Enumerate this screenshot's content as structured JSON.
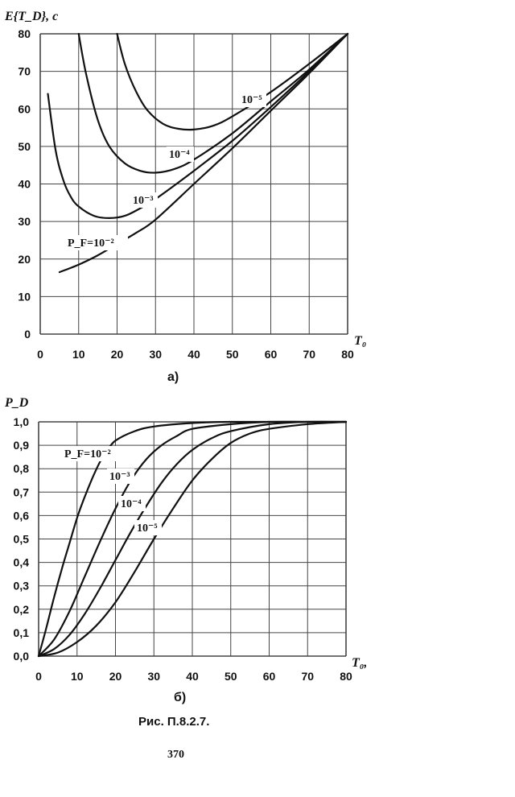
{
  "chart_data": [
    {
      "type": "line",
      "ylabel": "E{T_D}, c",
      "xlabel": "T₀",
      "xlim": [
        0,
        80
      ],
      "ylim": [
        0,
        80
      ],
      "xticks": [
        "0",
        "10",
        "20",
        "30",
        "40",
        "50",
        "60",
        "70",
        "80"
      ],
      "yticks": [
        "0",
        "10",
        "20",
        "30",
        "40",
        "50",
        "60",
        "70",
        "80"
      ],
      "grid": true,
      "series": [
        {
          "label": "P_F=10⁻²",
          "x": [
            5,
            10,
            15,
            20,
            25,
            30,
            40,
            50,
            60,
            70,
            80
          ],
          "y": [
            16.5,
            18.5,
            21,
            24,
            27,
            30.5,
            40,
            49.5,
            59.5,
            69.5,
            80
          ]
        },
        {
          "label": "10⁻³",
          "x": [
            2,
            4,
            6,
            8,
            10,
            14,
            18,
            22,
            26,
            30,
            40,
            50,
            60,
            70,
            80
          ],
          "y": [
            64,
            49,
            41,
            36.5,
            34,
            31.5,
            30.9,
            31.5,
            33.5,
            36,
            43.5,
            51.5,
            60.5,
            70,
            80
          ]
        },
        {
          "label": "10⁻⁴",
          "x": [
            10,
            12,
            15,
            18,
            22,
            26,
            30,
            35,
            40,
            50,
            60,
            70,
            80
          ],
          "y": [
            80,
            69,
            57,
            50,
            45.5,
            43.5,
            43,
            44,
            46.5,
            53.5,
            62,
            70.5,
            80
          ]
        },
        {
          "label": "10⁻⁵",
          "x": [
            20,
            22,
            25,
            28,
            32,
            36,
            40,
            45,
            50,
            60,
            70,
            80
          ],
          "y": [
            80,
            72,
            64.5,
            59.5,
            56,
            54.7,
            54.5,
            55.5,
            58,
            64.5,
            72,
            80
          ]
        }
      ],
      "caption": "а)"
    },
    {
      "type": "line",
      "ylabel": "P_D",
      "xlabel": "T₀,",
      "xlim": [
        0,
        80
      ],
      "ylim": [
        0,
        1.0
      ],
      "xticks": [
        "0",
        "10",
        "20",
        "30",
        "40",
        "50",
        "60",
        "70",
        "80"
      ],
      "yticks": [
        "0,0",
        "0,1",
        "0,2",
        "0,3",
        "0,4",
        "0,5",
        "0,6",
        "0,7",
        "0,8",
        "0,9",
        "1,0"
      ],
      "grid": true,
      "series": [
        {
          "label": "P_F=10⁻²",
          "x": [
            0,
            2,
            4,
            6,
            8,
            10,
            12,
            14,
            16,
            18,
            20,
            25,
            30,
            40,
            50,
            60,
            70,
            80
          ],
          "y": [
            0,
            0.12,
            0.25,
            0.37,
            0.48,
            0.59,
            0.68,
            0.76,
            0.83,
            0.88,
            0.92,
            0.96,
            0.98,
            0.995,
            1.0,
            1.0,
            1.0,
            1.0
          ]
        },
        {
          "label": "10⁻³",
          "x": [
            0,
            4,
            8,
            12,
            16,
            20,
            24,
            28,
            32,
            36,
            40,
            50,
            60,
            70,
            80
          ],
          "y": [
            0,
            0.07,
            0.19,
            0.34,
            0.49,
            0.63,
            0.75,
            0.84,
            0.9,
            0.94,
            0.97,
            0.99,
            1.0,
            1.0,
            1.0
          ]
        },
        {
          "label": "10⁻⁴",
          "x": [
            0,
            4,
            8,
            12,
            16,
            20,
            24,
            28,
            32,
            36,
            40,
            45,
            50,
            60,
            70,
            80
          ],
          "y": [
            0,
            0.03,
            0.09,
            0.18,
            0.29,
            0.41,
            0.53,
            0.64,
            0.74,
            0.82,
            0.88,
            0.93,
            0.96,
            0.99,
            1.0,
            1.0
          ]
        },
        {
          "label": "10⁻⁵",
          "x": [
            0,
            5,
            10,
            15,
            20,
            25,
            30,
            35,
            40,
            45,
            50,
            55,
            60,
            70,
            80
          ],
          "y": [
            0,
            0.015,
            0.06,
            0.13,
            0.23,
            0.36,
            0.5,
            0.63,
            0.75,
            0.84,
            0.91,
            0.95,
            0.97,
            0.99,
            1.0
          ]
        }
      ],
      "caption": "б)"
    }
  ],
  "figure_caption": "Рис. П.8.2.7.",
  "page_number": "370"
}
